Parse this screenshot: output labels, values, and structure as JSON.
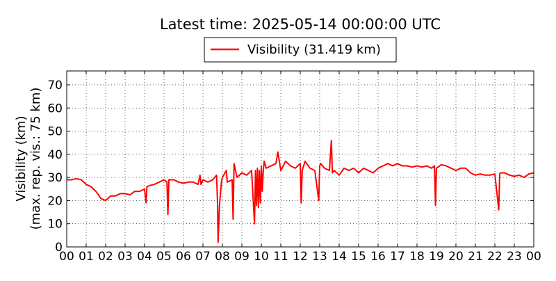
{
  "chart_data": {
    "type": "line",
    "title": "Latest time: 2025-05-14 00:00:00 UTC",
    "ylabel_line1": "Visibility (km)",
    "ylabel_line2": "(max. rep. vis.: 75 km)",
    "xlabel": "",
    "x_unit": "hour of day (UTC)",
    "xlim": [
      0,
      24
    ],
    "ylim": [
      0,
      76
    ],
    "x_ticks": [
      {
        "value": 0,
        "label": "00"
      },
      {
        "value": 1,
        "label": "01"
      },
      {
        "value": 2,
        "label": "02"
      },
      {
        "value": 3,
        "label": "03"
      },
      {
        "value": 4,
        "label": "04"
      },
      {
        "value": 5,
        "label": "05"
      },
      {
        "value": 6,
        "label": "06"
      },
      {
        "value": 7,
        "label": "07"
      },
      {
        "value": 8,
        "label": "08"
      },
      {
        "value": 9,
        "label": "09"
      },
      {
        "value": 10,
        "label": "10"
      },
      {
        "value": 11,
        "label": "11"
      },
      {
        "value": 12,
        "label": "12"
      },
      {
        "value": 13,
        "label": "13"
      },
      {
        "value": 14,
        "label": "14"
      },
      {
        "value": 15,
        "label": "15"
      },
      {
        "value": 16,
        "label": "16"
      },
      {
        "value": 17,
        "label": "17"
      },
      {
        "value": 18,
        "label": "18"
      },
      {
        "value": 19,
        "label": "19"
      },
      {
        "value": 20,
        "label": "20"
      },
      {
        "value": 21,
        "label": "21"
      },
      {
        "value": 22,
        "label": "22"
      },
      {
        "value": 23,
        "label": "23"
      },
      {
        "value": 24,
        "label": "00"
      }
    ],
    "y_ticks": [
      0,
      10,
      20,
      30,
      40,
      50,
      60,
      70
    ],
    "grid": true,
    "grid_style": "dotted",
    "legend": {
      "position": "top-center",
      "label": "Visibility (31.419 km)"
    },
    "series": [
      {
        "name": "Visibility",
        "color": "#ff0000",
        "x": [
          0.0,
          0.25,
          0.5,
          0.75,
          1.0,
          1.25,
          1.5,
          1.75,
          2.0,
          2.25,
          2.5,
          2.75,
          3.0,
          3.25,
          3.5,
          3.75,
          4.0,
          4.08,
          4.12,
          4.25,
          4.5,
          4.75,
          5.0,
          5.15,
          5.2,
          5.25,
          5.5,
          5.75,
          6.0,
          6.25,
          6.5,
          6.75,
          6.85,
          6.9,
          7.0,
          7.25,
          7.5,
          7.7,
          7.75,
          7.78,
          7.85,
          7.95,
          8.0,
          8.2,
          8.25,
          8.5,
          8.55,
          8.6,
          8.75,
          9.0,
          9.25,
          9.5,
          9.65,
          9.7,
          9.75,
          9.8,
          9.85,
          9.9,
          9.95,
          10.0,
          10.05,
          10.1,
          10.15,
          10.25,
          10.5,
          10.75,
          10.85,
          11.0,
          11.25,
          11.5,
          11.75,
          12.0,
          12.05,
          12.1,
          12.25,
          12.5,
          12.75,
          12.95,
          13.0,
          13.05,
          13.25,
          13.5,
          13.6,
          13.65,
          13.75,
          14.0,
          14.25,
          14.5,
          14.75,
          15.0,
          15.25,
          15.5,
          15.75,
          16.0,
          16.25,
          16.5,
          16.75,
          17.0,
          17.25,
          17.5,
          17.75,
          18.0,
          18.25,
          18.5,
          18.75,
          18.9,
          18.95,
          19.0,
          19.25,
          19.5,
          19.75,
          20.0,
          20.25,
          20.5,
          20.75,
          21.0,
          21.25,
          21.5,
          21.75,
          22.0,
          22.2,
          22.25,
          22.3,
          22.5,
          22.75,
          23.0,
          23.25,
          23.5,
          23.75,
          24.0
        ],
        "y": [
          29,
          29,
          29.5,
          29,
          27,
          26,
          24,
          21,
          20,
          22,
          22,
          23,
          23,
          22.5,
          24,
          24,
          25,
          19,
          26,
          26.5,
          27,
          28,
          29,
          28,
          14,
          29,
          29,
          28,
          27.5,
          28,
          28,
          27,
          31,
          27,
          29,
          28,
          29,
          31,
          19,
          2,
          18,
          28,
          30,
          33,
          28,
          29,
          12,
          36,
          30,
          32,
          31,
          33,
          10,
          33,
          18,
          34,
          17,
          33,
          19,
          35,
          24,
          33,
          37,
          34,
          35,
          36,
          41,
          33,
          37,
          35,
          34,
          36,
          19,
          33,
          37,
          34,
          33,
          20,
          35,
          36,
          34,
          33,
          46,
          32,
          33,
          31,
          34,
          33,
          34,
          32,
          34,
          33,
          32,
          34,
          35,
          36,
          35,
          36,
          35,
          35,
          34.5,
          35,
          34.5,
          35,
          34,
          35,
          18,
          34,
          35.5,
          35,
          34,
          33,
          34,
          34,
          32,
          31,
          31.5,
          31,
          31,
          31.5,
          16,
          31.5,
          32,
          32,
          31,
          30.5,
          31,
          30,
          31.5,
          32
        ]
      }
    ]
  }
}
